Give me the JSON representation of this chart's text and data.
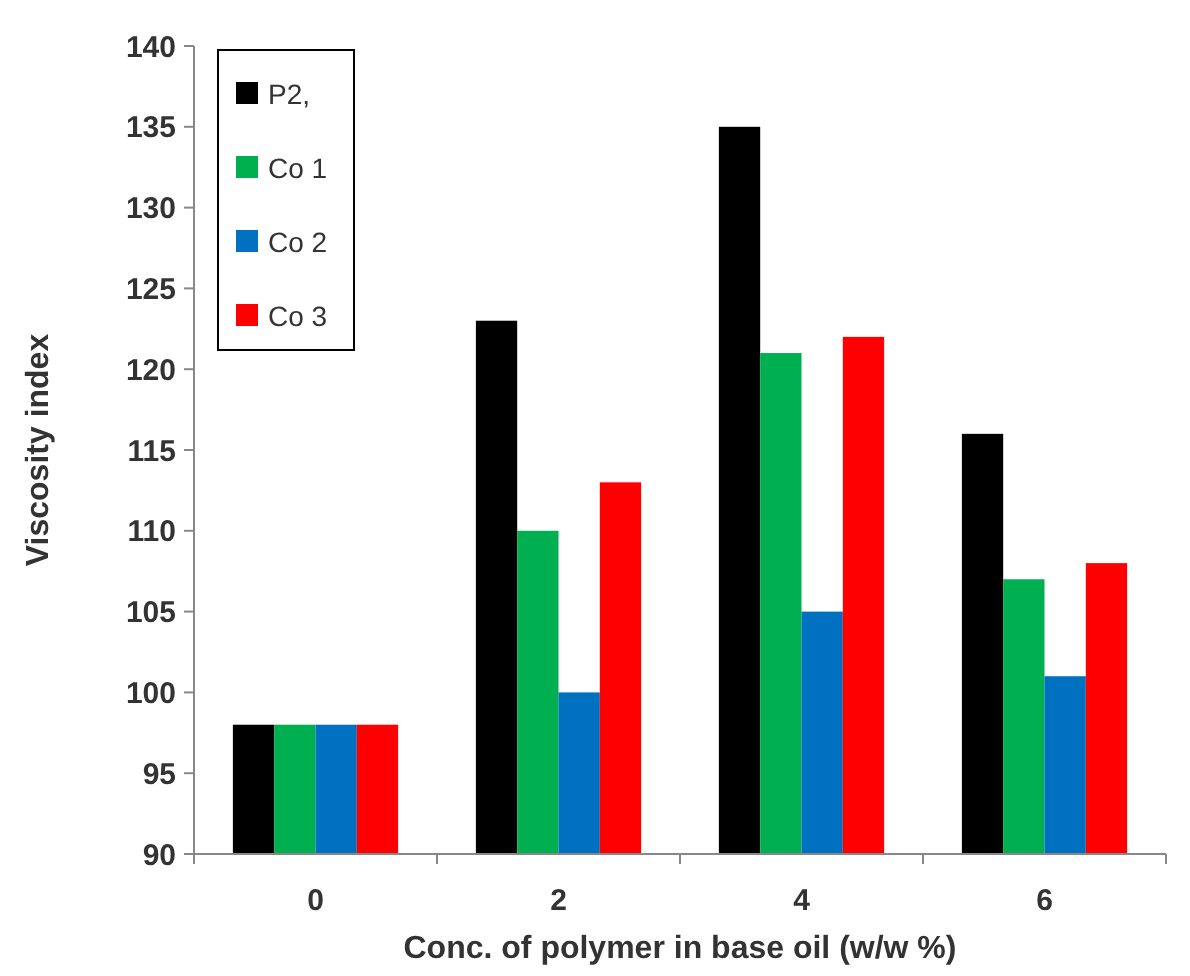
{
  "chart_data": {
    "type": "bar",
    "xlabel": "Conc. of polymer in base oil (w/w %)",
    "ylabel": "Viscosity index",
    "categories": [
      "0",
      "2",
      "4",
      "6"
    ],
    "series": [
      {
        "name": "P2,",
        "color": "#000000",
        "values": [
          98,
          123,
          135,
          116
        ]
      },
      {
        "name": "Co 1",
        "color": "#00b050",
        "values": [
          98,
          110,
          121,
          107
        ]
      },
      {
        "name": "Co 2",
        "color": "#0070c0",
        "values": [
          98,
          100,
          105,
          101
        ]
      },
      {
        "name": "Co 3",
        "color": "#ff0000",
        "values": [
          98,
          113,
          122,
          108
        ]
      }
    ],
    "ylim": [
      90,
      140
    ],
    "yticks": [
      90,
      95,
      100,
      105,
      110,
      115,
      120,
      125,
      130,
      135,
      140
    ],
    "legend": "top left",
    "grid": false
  }
}
